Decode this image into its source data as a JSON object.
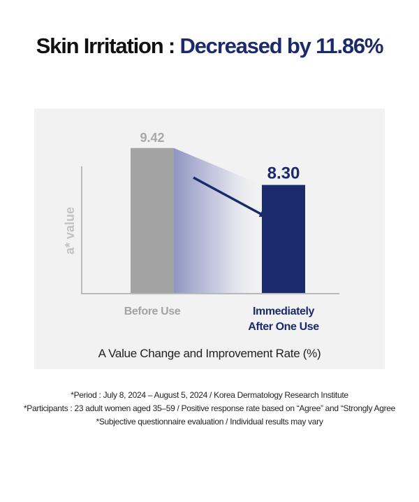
{
  "headline": {
    "lead": "Skin Irritation : ",
    "accent": "Decreased by 11.86%"
  },
  "colors": {
    "accent": "#1b2a6b",
    "bar_before": "#a3a3a3",
    "bar_after": "#1b2a6b",
    "panel_bg": "#f2f2f2"
  },
  "chart_data": {
    "type": "bar",
    "title": "",
    "ylabel": "a* value",
    "xlabel": "",
    "categories": [
      "Before Use",
      "Immediately After One Use"
    ],
    "category_lines": [
      [
        "Before Use"
      ],
      [
        "Immediately",
        "After One Use"
      ]
    ],
    "values": [
      9.42,
      8.3
    ],
    "value_labels": [
      "9.42",
      "8.30"
    ],
    "ylim": [
      5.0,
      10.2
    ],
    "grid": false,
    "legend": "none",
    "annotation": "arrow pointing from Before Use to Immediately After One Use"
  },
  "caption": "A Value Change and Improvement Rate (%)",
  "notes": [
    "*Period : July 8, 2024 – August 5, 2024 / Korea Dermatology Research Institute",
    "*Participants : 23 adult women aged 35–59 / Positive response rate based on “Agree” and “Strongly Agree",
    "*Subjective questionnaire evaluation / Individual results may vary"
  ]
}
